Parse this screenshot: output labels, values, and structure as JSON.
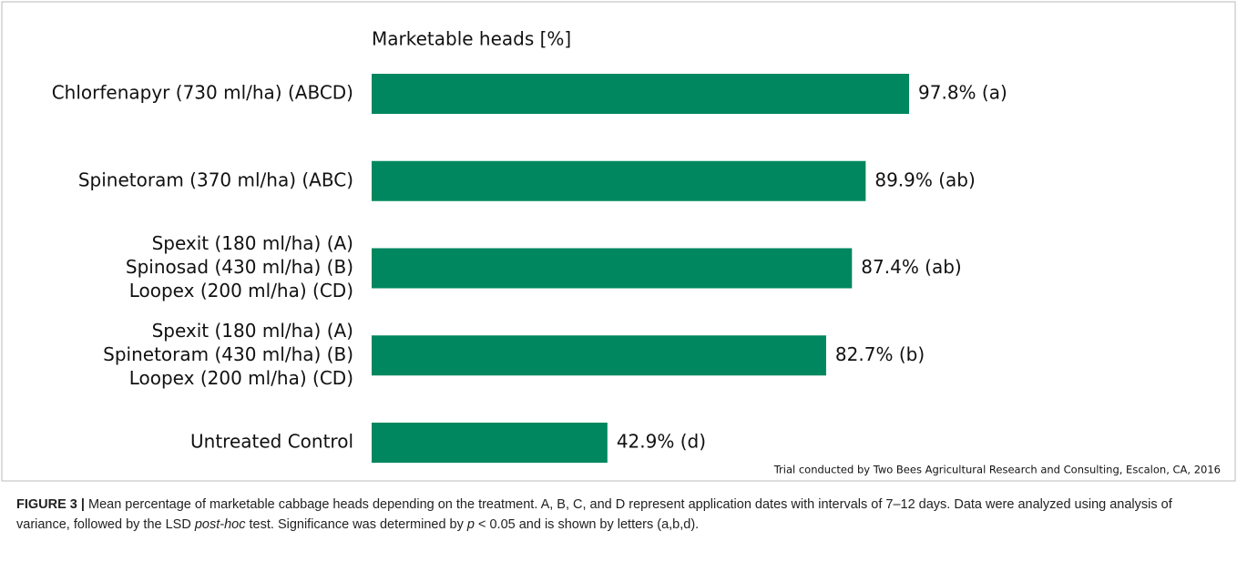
{
  "chart_data": {
    "type": "bar",
    "orientation": "horizontal",
    "title": "Marketable heads [%]",
    "categories": [
      [
        "Chlorfenapyr (730 ml/ha) (ABCD)"
      ],
      [
        "Spinetoram (370 ml/ha) (ABC)"
      ],
      [
        "Spexit (180 ml/ha) (A)",
        "Spinosad (430 ml/ha) (B)",
        "Loopex (200 ml/ha) (CD)"
      ],
      [
        "Spexit (180 ml/ha) (A)",
        "Spinetoram (430 ml/ha) (B)",
        "Loopex (200 ml/ha) (CD)"
      ],
      [
        "Untreated Control"
      ]
    ],
    "values": [
      97.8,
      89.9,
      87.4,
      82.7,
      42.9
    ],
    "value_labels": [
      "97.8% (a)",
      "89.9% (ab)",
      "87.4% (ab)",
      "82.7% (b)",
      "42.9% (d)"
    ],
    "color": "#00875f",
    "note": "Trial conducted by Two Bees Agricultural Research and Consulting, Escalon, CA, 2016"
  },
  "caption": {
    "label": "FIGURE 3 |",
    "parts": [
      {
        "text": " Mean percentage of marketable cabbage heads depending on the treatment. A, B, C, and D represent application dates with intervals of 7–12 days. Data were analyzed using analysis of variance, followed by the LSD "
      },
      {
        "text": "post-hoc",
        "style": "italic"
      },
      {
        "text": " test. Significance was determined by "
      },
      {
        "text": "p",
        "style": "italic"
      },
      {
        "text": " < 0.05 and is shown by letters (a,b,d)."
      }
    ]
  }
}
